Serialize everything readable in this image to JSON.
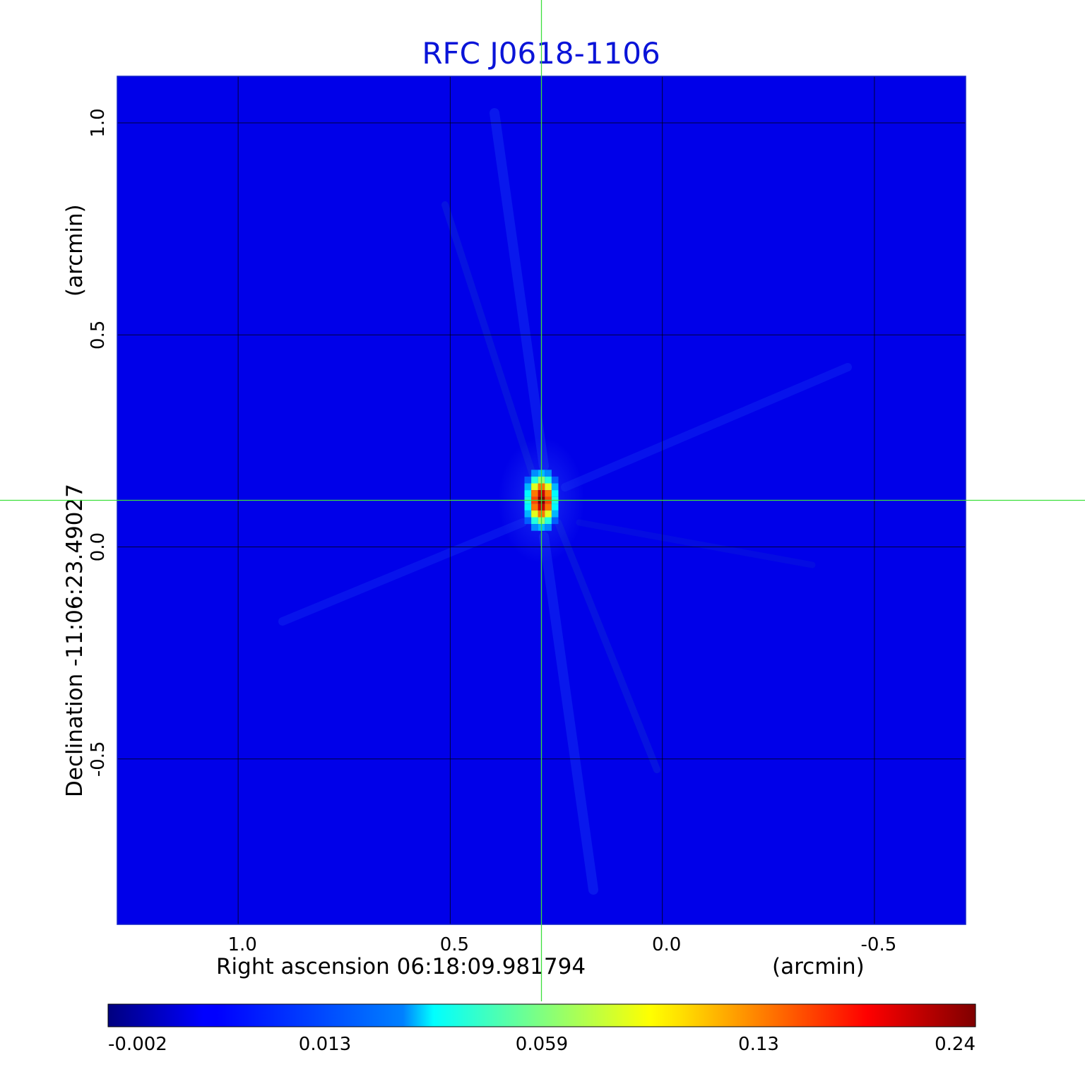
{
  "chart_data": {
    "type": "heatmap",
    "title": "RFC J0618-1106",
    "x_axis": {
      "label": "Right ascension  06:18:09.981794",
      "unit_label": "(arcmin)",
      "ticks": [
        "1.0",
        "0.5",
        "0.0",
        "-0.5"
      ],
      "tick_values": [
        1.0,
        0.5,
        0.0,
        -0.5
      ],
      "range": [
        1.285,
        -0.715
      ],
      "reversed": true
    },
    "y_axis": {
      "label": "Declination  -11:06:23.49027",
      "unit_label": "(arcmin)",
      "ticks": [
        "1.0",
        "0.5",
        "0.0",
        "-0.5"
      ],
      "tick_values": [
        1.0,
        0.5,
        0.0,
        -0.5
      ],
      "range": [
        -0.89,
        1.11
      ]
    },
    "grid": true,
    "colorbar": {
      "colormap": "jet",
      "ticks": [
        "-0.002",
        "0.013",
        "0.059",
        "0.13",
        "0.24"
      ],
      "placement": "bottom"
    },
    "background_value": -0.0005,
    "source": {
      "peak_value": 0.24,
      "ra_offset_arcmin": 0.285,
      "dec_offset_arcmin": 0.11,
      "fwhm_ra_arcmin": 0.04,
      "fwhm_dec_arcmin": 0.07
    },
    "crosshair": {
      "ra_offset_arcmin": 0.285,
      "dec_offset_arcmin": 0.11,
      "color": "#3ce03c"
    },
    "colors": {
      "title": "#0a14d8",
      "grid": "#000000",
      "crosshair": "#3ce03c"
    }
  }
}
